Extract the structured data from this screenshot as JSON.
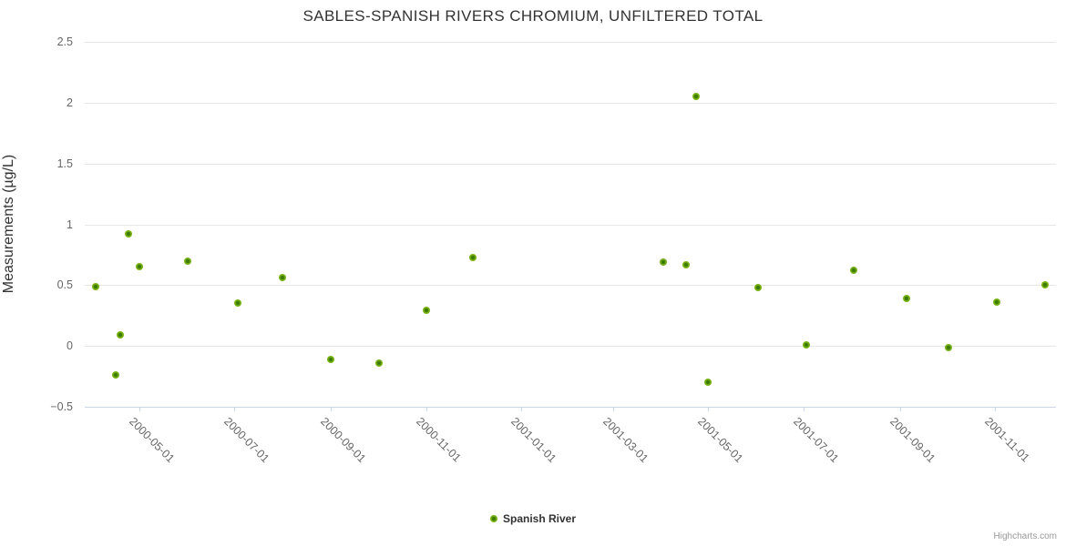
{
  "credits": {
    "label": "Highcharts.com"
  },
  "colors": {
    "marker_outer": "#77b317",
    "marker_inner": "#3f7c00",
    "gridline": "#e6e6e6",
    "axis_line": "#ccd6eb",
    "title_text": "#333333",
    "axis_label_text": "#666666",
    "credits_text": "#999999"
  },
  "chart_data": {
    "type": "scatter",
    "title": "SABLES-SPANISH RIVERS CHROMIUM, UNFILTERED TOTAL",
    "xlabel": "",
    "ylabel": "Measurements (µg/L)",
    "ylim": [
      -0.5,
      2.5
    ],
    "xlim_dates": [
      "2000-03-27",
      "2001-12-10"
    ],
    "grid": "horizontal-only",
    "legend_position": "bottom-center",
    "y_ticks": [
      {
        "value": 2.5,
        "label": "2.5"
      },
      {
        "value": 2,
        "label": "2"
      },
      {
        "value": 1.5,
        "label": "1.5"
      },
      {
        "value": 1,
        "label": "1"
      },
      {
        "value": 0.5,
        "label": "0.5"
      },
      {
        "value": 0,
        "label": "0"
      },
      {
        "value": -0.5,
        "label": "−0.5"
      }
    ],
    "x_ticks": [
      {
        "date": "2000-05-01",
        "label": "2000-05-01"
      },
      {
        "date": "2000-07-01",
        "label": "2000-07-01"
      },
      {
        "date": "2000-09-01",
        "label": "2000-09-01"
      },
      {
        "date": "2000-11-01",
        "label": "2000-11-01"
      },
      {
        "date": "2001-01-01",
        "label": "2001-01-01"
      },
      {
        "date": "2001-03-01",
        "label": "2001-03-01"
      },
      {
        "date": "2001-05-01",
        "label": "2001-05-01"
      },
      {
        "date": "2001-07-01",
        "label": "2001-07-01"
      },
      {
        "date": "2001-09-01",
        "label": "2001-09-01"
      },
      {
        "date": "2001-11-01",
        "label": "2001-11-01"
      }
    ],
    "series": [
      {
        "name": "Spanish River",
        "marker": "circle",
        "color": "#77b317",
        "points": [
          {
            "date": "2000-04-03",
            "value": 0.49
          },
          {
            "date": "2000-04-16",
            "value": -0.24
          },
          {
            "date": "2000-04-19",
            "value": 0.09
          },
          {
            "date": "2000-04-24",
            "value": 0.92
          },
          {
            "date": "2000-05-01",
            "value": 0.65
          },
          {
            "date": "2000-06-01",
            "value": 0.7
          },
          {
            "date": "2000-07-03",
            "value": 0.35
          },
          {
            "date": "2000-08-01",
            "value": 0.56
          },
          {
            "date": "2000-09-01",
            "value": -0.11
          },
          {
            "date": "2000-10-02",
            "value": -0.14
          },
          {
            "date": "2000-11-01",
            "value": 0.29
          },
          {
            "date": "2000-12-01",
            "value": 0.73
          },
          {
            "date": "2001-04-02",
            "value": 0.69
          },
          {
            "date": "2001-04-17",
            "value": 0.67
          },
          {
            "date": "2001-04-23",
            "value": 2.05
          },
          {
            "date": "2001-05-01",
            "value": -0.3
          },
          {
            "date": "2001-06-02",
            "value": 0.48
          },
          {
            "date": "2001-07-03",
            "value": 0.01
          },
          {
            "date": "2001-08-02",
            "value": 0.62
          },
          {
            "date": "2001-09-05",
            "value": 0.39
          },
          {
            "date": "2001-10-02",
            "value": -0.01
          },
          {
            "date": "2001-11-02",
            "value": 0.36
          },
          {
            "date": "2001-12-03",
            "value": 0.5
          }
        ]
      }
    ]
  }
}
